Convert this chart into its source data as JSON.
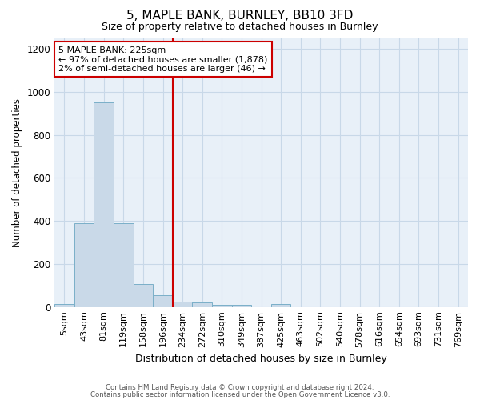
{
  "title1": "5, MAPLE BANK, BURNLEY, BB10 3FD",
  "title2": "Size of property relative to detached houses in Burnley",
  "xlabel": "Distribution of detached houses by size in Burnley",
  "ylabel": "Number of detached properties",
  "bar_labels": [
    "5sqm",
    "43sqm",
    "81sqm",
    "119sqm",
    "158sqm",
    "196sqm",
    "234sqm",
    "272sqm",
    "310sqm",
    "349sqm",
    "387sqm",
    "425sqm",
    "463sqm",
    "502sqm",
    "540sqm",
    "578sqm",
    "616sqm",
    "654sqm",
    "693sqm",
    "731sqm",
    "769sqm"
  ],
  "bar_values": [
    15,
    390,
    950,
    390,
    105,
    55,
    25,
    20,
    10,
    10,
    0,
    12,
    0,
    0,
    0,
    0,
    0,
    0,
    0,
    0,
    0
  ],
  "bar_color": "#c9d9e8",
  "bar_edge_color": "#7aafc8",
  "red_line_x": 6.0,
  "red_line_color": "#cc0000",
  "annotation_text": "5 MAPLE BANK: 225sqm\n← 97% of detached houses are smaller (1,878)\n2% of semi-detached houses are larger (46) →",
  "annotation_box_color": "#ffffff",
  "annotation_box_edge": "#cc0000",
  "ylim": [
    0,
    1250
  ],
  "yticks": [
    0,
    200,
    400,
    600,
    800,
    1000,
    1200
  ],
  "grid_color": "#c8d8e8",
  "bg_color": "#e8f0f8",
  "footer1": "Contains HM Land Registry data © Crown copyright and database right 2024.",
  "footer2": "Contains public sector information licensed under the Open Government Licence v3.0."
}
